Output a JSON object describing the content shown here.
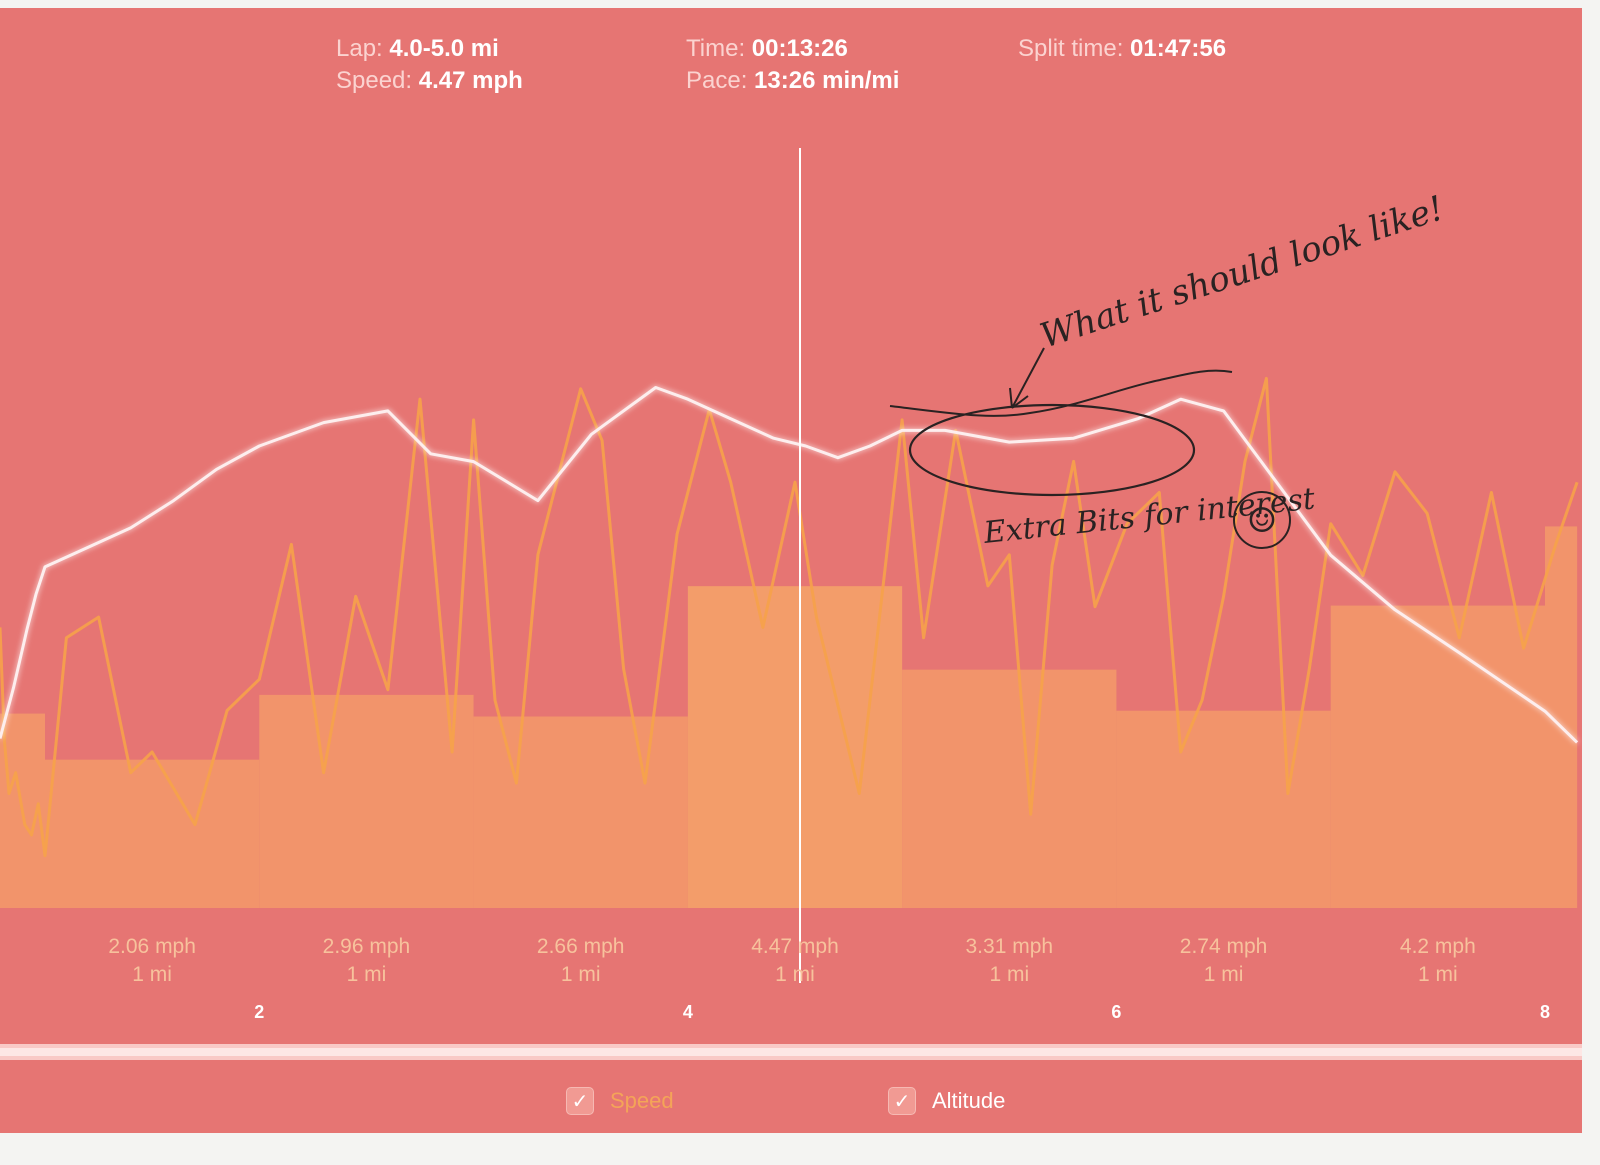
{
  "header": {
    "lap_label": "Lap:",
    "lap_value": "4.0-5.0 mi",
    "speed_label": "Speed:",
    "speed_value": "4.47 mph",
    "time_label": "Time:",
    "time_value": "00:13:26",
    "pace_label": "Pace:",
    "pace_value": "13:26 min/mi",
    "split_label": "Split time:",
    "split_value": "01:47:56"
  },
  "chart_data": {
    "type": "bar",
    "x_unit": "mi",
    "xlim": [
      0,
      8
    ],
    "x_ticks": [
      "2",
      "4",
      "6",
      "8"
    ],
    "selected_mile": [
      4,
      5
    ],
    "lap_bars": [
      {
        "start": 1,
        "end": 2,
        "speed_mph": 2.06,
        "speed_label": "2.06 mph",
        "distance_label": "1 mi"
      },
      {
        "start": 2,
        "end": 3,
        "speed_mph": 2.96,
        "speed_label": "2.96 mph",
        "distance_label": "1 mi"
      },
      {
        "start": 3,
        "end": 4,
        "speed_mph": 2.66,
        "speed_label": "2.66 mph",
        "distance_label": "1 mi"
      },
      {
        "start": 4,
        "end": 5,
        "speed_mph": 4.47,
        "speed_label": "4.47 mph",
        "distance_label": "1 mi"
      },
      {
        "start": 5,
        "end": 6,
        "speed_mph": 3.31,
        "speed_label": "3.31 mph",
        "distance_label": "1 mi"
      },
      {
        "start": 6,
        "end": 7,
        "speed_mph": 2.74,
        "speed_label": "2.74 mph",
        "distance_label": "1 mi"
      },
      {
        "start": 7,
        "end": 8,
        "speed_mph": 4.2,
        "speed_label": "4.2 mph",
        "distance_label": "1 mi"
      }
    ],
    "partial_bars": [
      {
        "start": 0,
        "end": 0.2,
        "speed_mph": 2.7
      },
      {
        "start": 8,
        "end": 8.15,
        "speed_mph": 5.3
      }
    ],
    "series": [
      {
        "name": "Altitude",
        "color": "#fdeeee",
        "x": [
          0,
          0.3,
          0.6,
          0.8,
          1.0,
          1.2,
          1.4,
          1.6,
          1.8,
          2.0,
          2.3,
          2.6,
          2.8,
          3.0,
          3.3,
          3.55,
          3.85,
          4.0,
          4.2,
          4.4,
          4.55,
          4.7,
          4.85,
          5.0,
          5.2,
          5.5,
          5.8,
          6.1,
          6.3,
          6.5,
          7.0,
          7.3,
          7.6,
          8.0,
          8.15
        ],
        "y": [
          0.05,
          0.18,
          0.33,
          0.42,
          0.49,
          0.54,
          0.59,
          0.66,
          0.74,
          0.8,
          0.86,
          0.89,
          0.78,
          0.76,
          0.66,
          0.83,
          0.95,
          0.92,
          0.87,
          0.82,
          0.8,
          0.77,
          0.8,
          0.84,
          0.84,
          0.81,
          0.82,
          0.87,
          0.92,
          0.89,
          0.52,
          0.38,
          0.27,
          0.12,
          0.04
        ]
      },
      {
        "name": "Speed",
        "color": "#f6a24a",
        "x": [
          0,
          0.1,
          0.2,
          0.35,
          0.55,
          0.7,
          0.85,
          1.0,
          1.1,
          1.25,
          1.4,
          1.5,
          1.7,
          1.85,
          2.0,
          2.15,
          2.3,
          2.45,
          2.6,
          2.75,
          2.9,
          3.0,
          3.1,
          3.2,
          3.3,
          3.5,
          3.6,
          3.7,
          3.8,
          3.95,
          4.1,
          4.2,
          4.35,
          4.5,
          4.6,
          4.8,
          5.0,
          5.1,
          5.25,
          5.4,
          5.5,
          5.6,
          5.7,
          5.8,
          5.9,
          6.05,
          6.2,
          6.3,
          6.4,
          6.5,
          6.6,
          6.7,
          6.8,
          6.9,
          7.0,
          7.15,
          7.3,
          7.45,
          7.6,
          7.75,
          7.9,
          8.05,
          8.15
        ],
        "y": [
          2.8,
          1.7,
          1.2,
          1.4,
          0.9,
          0.8,
          1.1,
          0.6,
          2.7,
          2.9,
          1.4,
          1.6,
          0.9,
          2.0,
          2.3,
          3.6,
          1.4,
          3.1,
          2.2,
          5.0,
          1.6,
          4.8,
          2.1,
          1.3,
          3.5,
          5.1,
          4.6,
          2.4,
          1.3,
          3.7,
          4.9,
          4.2,
          2.8,
          4.2,
          2.9,
          1.2,
          4.8,
          2.7,
          4.7,
          3.2,
          3.5,
          1.0,
          3.4,
          4.4,
          3.0,
          3.8,
          4.1,
          1.6,
          2.1,
          3.1,
          4.4,
          5.2,
          1.2,
          2.4,
          3.8,
          3.3,
          4.3,
          3.9,
          2.7,
          4.1,
          2.6,
          3.6,
          4.2
        ]
      }
    ],
    "annotations": [
      {
        "text": "What it should look like!"
      },
      {
        "text": "Extra Bits for interest"
      },
      {
        "text": "☺"
      }
    ]
  },
  "toggles": [
    {
      "label": "Speed",
      "checked": true,
      "color": "#f4a458"
    },
    {
      "label": "Altitude",
      "checked": true,
      "color": "#ffffff"
    }
  ],
  "colors": {
    "panel_background": "#e67573",
    "bar_fill": "#f39a6a",
    "bar_fill_selected": "#f5a468",
    "altitude_line": "#fdeeee",
    "speed_line": "#f6a24a",
    "scrubber": "#ffffff"
  }
}
